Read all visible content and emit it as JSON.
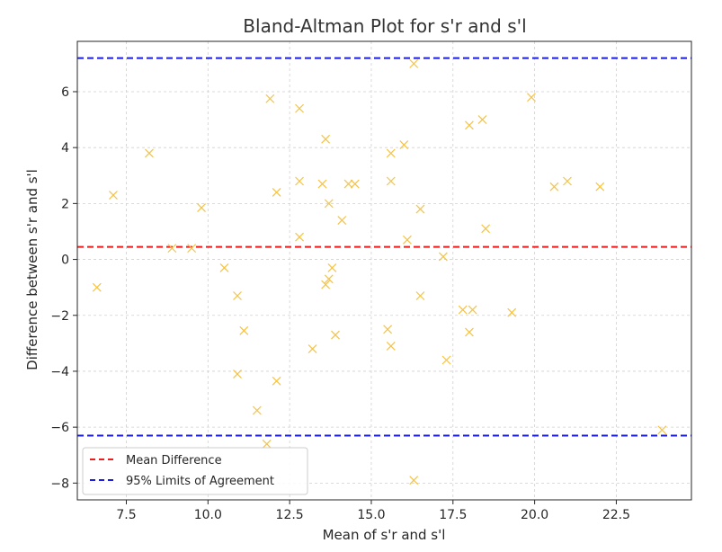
{
  "chart_data": {
    "type": "scatter",
    "title": "Bland-Altman Plot for s'r and s'l",
    "xlabel": "Mean of s'r and s'l",
    "ylabel": "Difference between s'r and s'l",
    "xlim": [
      6.0,
      24.8
    ],
    "ylim": [
      -8.6,
      7.8
    ],
    "x_ticks": [
      7.5,
      10.0,
      12.5,
      15.0,
      17.5,
      20.0,
      22.5
    ],
    "x_tick_labels": [
      "7.5",
      "10.0",
      "12.5",
      "15.0",
      "17.5",
      "20.0",
      "22.5"
    ],
    "y_ticks": [
      -8,
      -6,
      -4,
      -2,
      0,
      2,
      4,
      6
    ],
    "y_tick_labels": [
      "−8",
      "−6",
      "−4",
      "−2",
      "0",
      "2",
      "4",
      "6"
    ],
    "grid": true,
    "marker_color": "#f5c244",
    "points": {
      "x": [
        6.6,
        7.1,
        8.2,
        8.9,
        9.5,
        9.8,
        10.5,
        10.9,
        10.9,
        11.1,
        11.5,
        11.8,
        11.9,
        12.1,
        12.1,
        12.8,
        12.8,
        12.8,
        13.2,
        13.5,
        13.6,
        13.6,
        13.7,
        13.7,
        13.8,
        13.9,
        14.1,
        14.3,
        14.5,
        15.5,
        15.6,
        15.6,
        15.6,
        16.0,
        16.1,
        16.3,
        16.3,
        16.5,
        16.5,
        17.2,
        17.3,
        17.8,
        18.0,
        18.0,
        18.1,
        18.4,
        18.5,
        19.3,
        19.9,
        20.6,
        21.0,
        22.0,
        23.9
      ],
      "y": [
        -1.0,
        2.3,
        3.8,
        0.4,
        0.4,
        1.85,
        -0.3,
        -1.3,
        -4.1,
        -2.55,
        -5.4,
        -6.6,
        5.75,
        2.4,
        -4.35,
        5.4,
        2.8,
        0.8,
        -3.2,
        2.7,
        4.3,
        -0.9,
        2.0,
        -0.7,
        -0.3,
        -2.7,
        1.4,
        2.7,
        2.7,
        -2.5,
        2.8,
        -3.1,
        3.8,
        4.1,
        0.7,
        -7.9,
        7.0,
        -1.3,
        1.8,
        0.1,
        -3.6,
        -1.8,
        4.8,
        -2.6,
        -1.8,
        5.0,
        1.1,
        -1.9,
        5.8,
        2.6,
        2.8,
        2.6,
        -6.1
      ]
    },
    "lines": [
      {
        "name": "Mean Difference",
        "y": 0.45,
        "color": "#ee1c1c",
        "dash": "dashed"
      },
      {
        "name": "95% Limits of Agreement",
        "y": 7.2,
        "color": "#1c1cdd",
        "dash": "dashed"
      },
      {
        "name": "95% Limits of Agreement",
        "y": -6.3,
        "color": "#1c1cdd",
        "dash": "dashed"
      }
    ],
    "legend": {
      "placement": "lower-left",
      "entries": [
        {
          "label": "Mean Difference",
          "color": "#ee1c1c"
        },
        {
          "label": "95% Limits of Agreement",
          "color": "#1c1cdd"
        }
      ]
    }
  }
}
